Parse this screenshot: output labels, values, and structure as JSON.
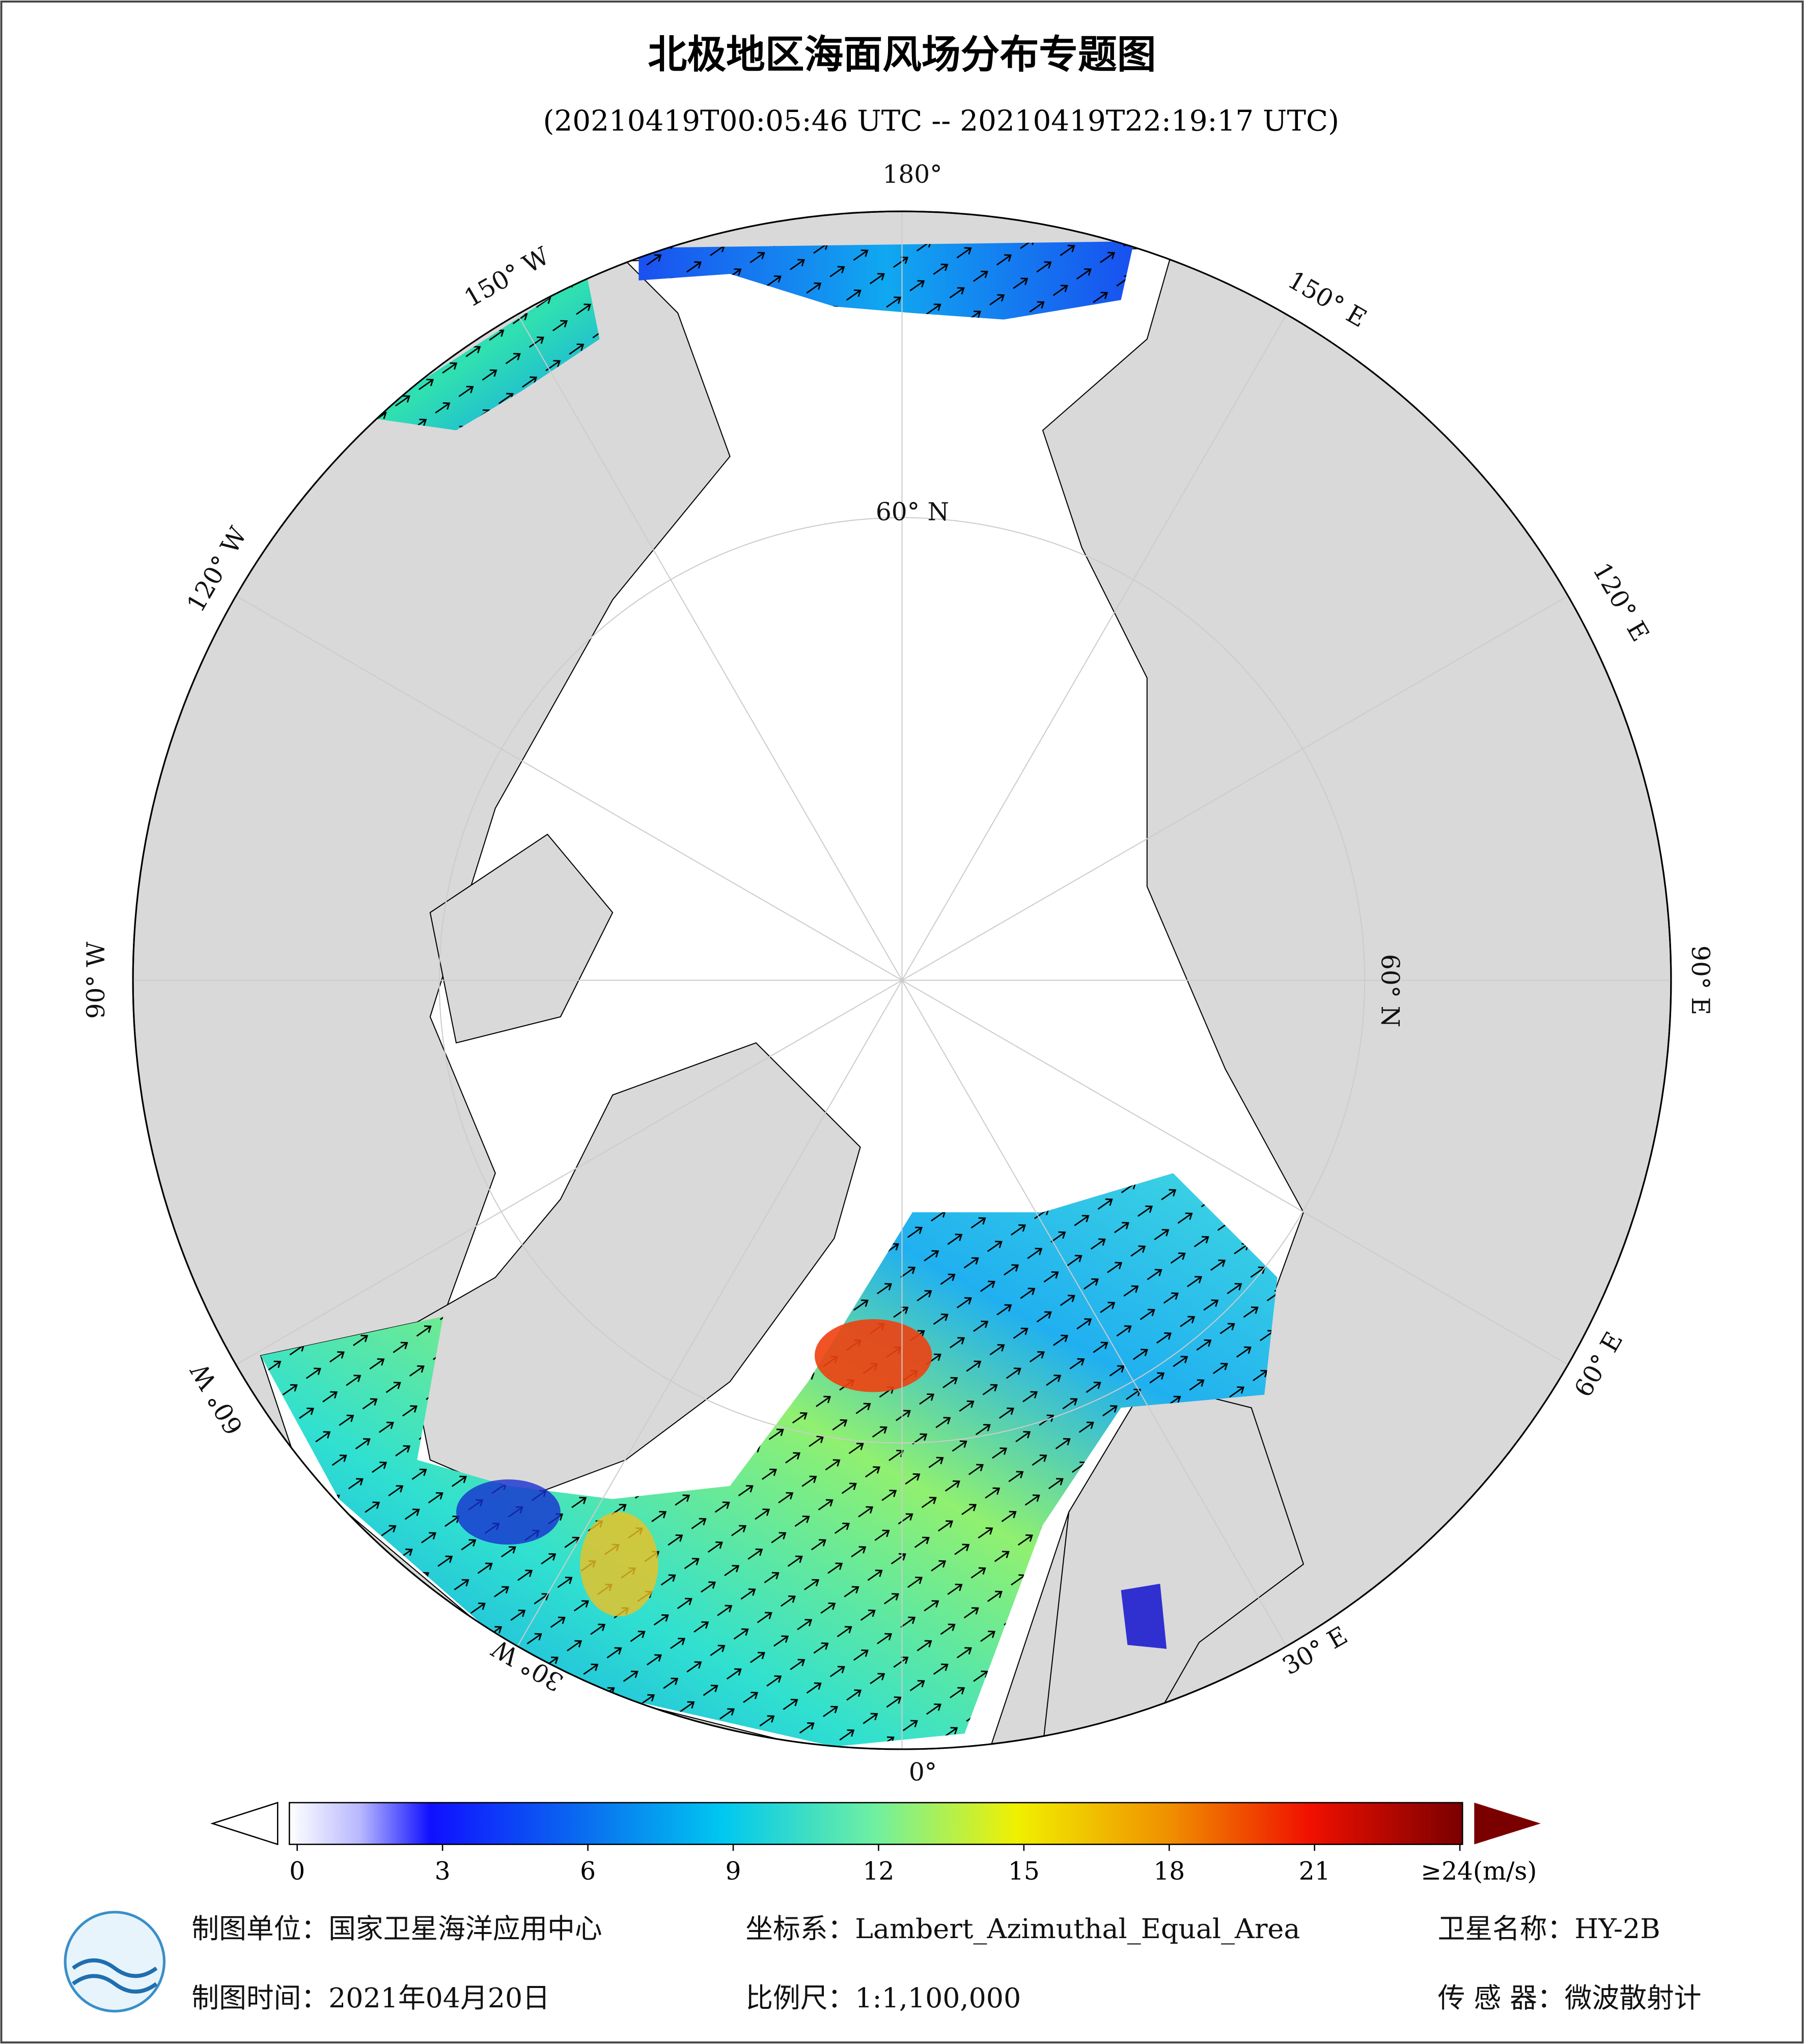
{
  "header": {
    "title": "北极地区海面风场分布专题图",
    "subtitle": "(20210419T00:05:46 UTC -- 20210419T22:19:17 UTC)"
  },
  "map": {
    "longitude_labels": {
      "lon_180": "180°",
      "lon_150e": "150° E",
      "lon_120e": "120° E",
      "lon_90e": "90° E",
      "lon_60e": "60° E",
      "lon_30e": "30° E",
      "lon_0": "0°",
      "lon_30w": "30° W",
      "lon_60w": "60° W",
      "lon_90w": "90° W",
      "lon_120w": "120° W",
      "lon_150w": "150° W"
    },
    "latitude_labels": {
      "top": "60° N",
      "right": "60° N"
    }
  },
  "colorbar": {
    "range": [
      0,
      24
    ],
    "ticks": [
      0,
      3,
      6,
      9,
      12,
      15,
      18,
      21,
      {
        "value": 24,
        "label": "≥24(m/s)"
      }
    ]
  },
  "footer": {
    "organization": "制图单位：国家卫星海洋应用中心",
    "projection": "坐标系：Lambert_Azimuthal_Equal_Area",
    "satellite": "卫星名称：HY-2B",
    "date": "制图时间：2021年04月20日",
    "scale": "比例尺：1:1,100,000",
    "sensor": "传 感 器：微波散射计"
  }
}
